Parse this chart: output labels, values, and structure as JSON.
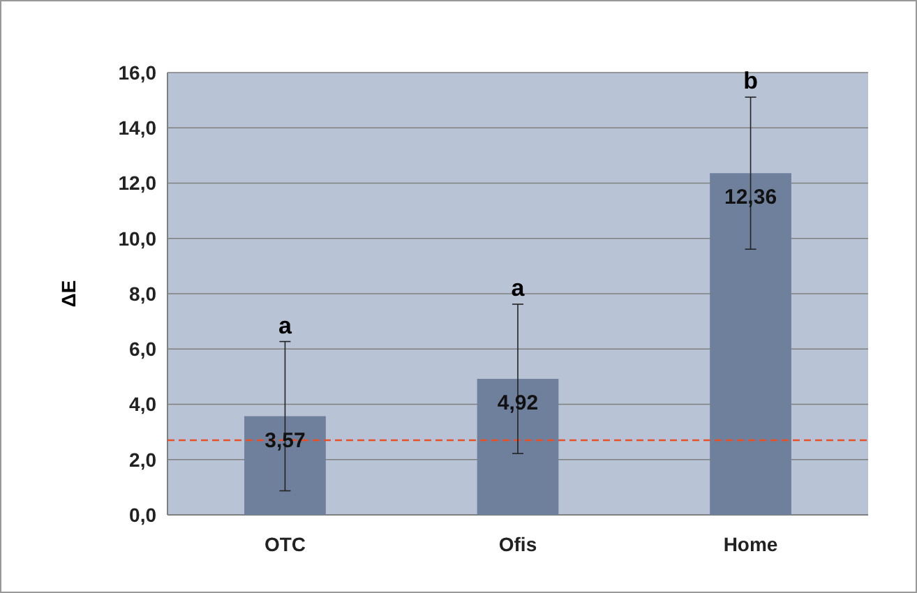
{
  "chart_data": {
    "type": "bar",
    "ylabel": "ΔE",
    "categories": [
      "OTC",
      "Ofis",
      "Home"
    ],
    "values": [
      3.57,
      4.92,
      12.36
    ],
    "color": "#6f809c",
    "errors": [
      2.7,
      2.7,
      2.75
    ],
    "value_labels": [
      "3,57",
      "4,92",
      "12,36"
    ],
    "ylim": [
      0,
      16
    ],
    "yticks": [
      {
        "value": 0,
        "label": "0,0"
      },
      {
        "value": 2,
        "label": "2,0"
      },
      {
        "value": 4,
        "label": "4,0"
      },
      {
        "value": 6,
        "label": "6,0"
      },
      {
        "value": 8,
        "label": "8,0"
      },
      {
        "value": 10,
        "label": "10,0"
      },
      {
        "value": 12,
        "label": "12,0"
      },
      {
        "value": 14,
        "label": "14,0"
      },
      {
        "value": 16,
        "label": "16,0"
      }
    ],
    "grid": "y",
    "ref_lines": [
      {
        "axis": "y",
        "value": 2.7,
        "color": "#e8502a",
        "line_style": "dashed"
      }
    ],
    "annotations": [
      "a",
      "a",
      "b"
    ]
  }
}
